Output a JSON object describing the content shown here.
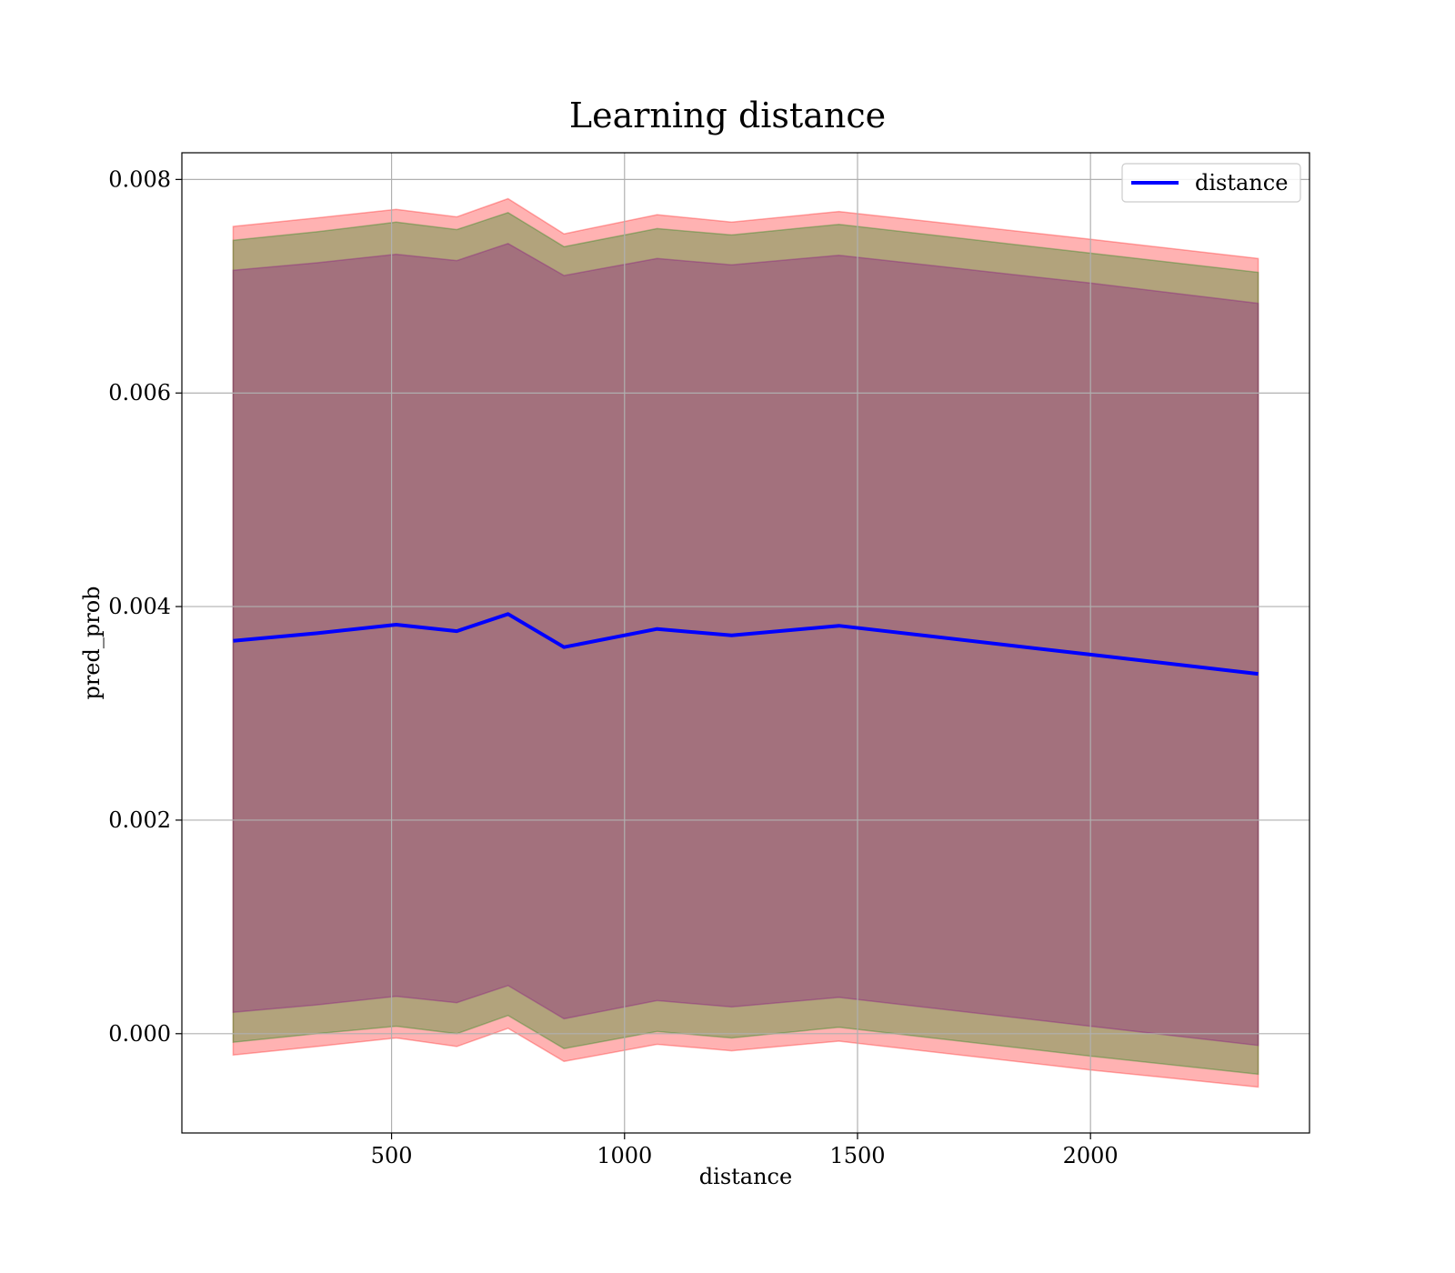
{
  "chart_data": {
    "type": "line",
    "title": "Learning distance",
    "xlabel": "distance",
    "ylabel": "pred_prob",
    "xlim": [
      50,
      2470
    ],
    "ylim": [
      -0.00093,
      0.00825
    ],
    "xticks": [
      500,
      1000,
      1500,
      2000
    ],
    "xtick_labels": [
      "500",
      "1000",
      "1500",
      "2000"
    ],
    "yticks": [
      0.0,
      0.002,
      0.004,
      0.006,
      0.008
    ],
    "ytick_labels": [
      "0.000",
      "0.002",
      "0.004",
      "0.006",
      "0.008"
    ],
    "grid": true,
    "legend_position": "top-right",
    "x": [
      160,
      340,
      510,
      640,
      750,
      870,
      1070,
      1230,
      1460,
      2000,
      2360
    ],
    "series": [
      {
        "name": "distance",
        "color": "#0000ff",
        "values": [
          0.00368,
          0.00375,
          0.00383,
          0.00377,
          0.00393,
          0.00362,
          0.00379,
          0.00373,
          0.00382,
          0.00355,
          0.00337
        ]
      }
    ],
    "bands": [
      {
        "color": "#ff0000",
        "opacity": 0.3,
        "upper": [
          0.00756,
          0.00764,
          0.00772,
          0.00765,
          0.00782,
          0.00749,
          0.00767,
          0.0076,
          0.0077,
          0.00744,
          0.00726
        ],
        "lower": [
          -0.0002,
          -0.00012,
          -4e-05,
          -0.00012,
          5e-05,
          -0.00026,
          -0.0001,
          -0.00016,
          -7e-05,
          -0.00034,
          -0.0005
        ]
      },
      {
        "color": "#008000",
        "opacity": 0.3,
        "upper": [
          0.00743,
          0.00751,
          0.0076,
          0.00753,
          0.00769,
          0.00737,
          0.00754,
          0.00748,
          0.00758,
          0.00731,
          0.00713
        ],
        "lower": [
          -8e-05,
          0.0,
          7e-05,
          0.0,
          0.00017,
          -0.00014,
          2e-05,
          -4e-05,
          6e-05,
          -0.00021,
          -0.00038
        ]
      },
      {
        "color": "#800080",
        "opacity": 0.3,
        "upper": [
          0.00715,
          0.00722,
          0.0073,
          0.00724,
          0.0074,
          0.0071,
          0.00726,
          0.0072,
          0.00729,
          0.00703,
          0.00684
        ],
        "lower": [
          0.0002,
          0.00027,
          0.00035,
          0.00029,
          0.00045,
          0.00014,
          0.00031,
          0.00025,
          0.00034,
          7e-05,
          -0.00011
        ]
      }
    ]
  }
}
